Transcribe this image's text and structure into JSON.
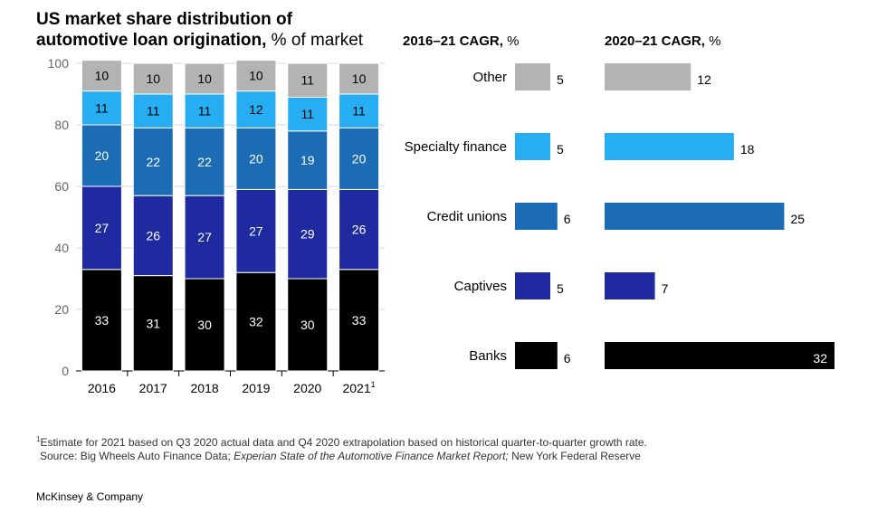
{
  "title_bold_line1": "US market share distribution of",
  "title_bold_line2": "automotive loan origination,",
  "title_unit": " % of market",
  "cagr_header_1_bold": "2016–21 CAGR,",
  "cagr_header_1_unit": " %",
  "cagr_header_2_bold": "2020–21 CAGR,",
  "cagr_header_2_unit": " %",
  "footnote_marker": "1",
  "footnote_text": "Estimate for 2021 based on Q3 2020 actual data and Q4 2020 extrapolation based on historical quarter-to-quarter growth rate.",
  "source_prefix": "Source: Big Wheels Auto Finance Data; ",
  "source_italic": "Experian State of the Automotive Finance Market  Report;",
  "source_suffix": " New York Federal Reserve",
  "brand": "McKinsey & Company",
  "colors": {
    "Banks": "#000000",
    "Captives": "#1f2aa0",
    "Credit unions": "#1c6bb5",
    "Specialty finance": "#26adf2",
    "Other": "#b3b3b3"
  },
  "chart_data": [
    {
      "type": "bar",
      "stacked": true,
      "title": "US market share distribution of automotive loan origination, % of market",
      "categories": [
        "2016",
        "2017",
        "2018",
        "2019",
        "2020",
        "2021"
      ],
      "category_superscripts": [
        "",
        "",
        "",
        "",
        "",
        "1"
      ],
      "ylim": [
        0,
        100
      ],
      "yticks": [
        0,
        20,
        40,
        60,
        80,
        100
      ],
      "series": [
        {
          "name": "Banks",
          "values": [
            33,
            31,
            30,
            32,
            30,
            33
          ]
        },
        {
          "name": "Captives",
          "values": [
            27,
            26,
            27,
            27,
            29,
            26
          ]
        },
        {
          "name": "Credit unions",
          "values": [
            20,
            22,
            22,
            20,
            19,
            20
          ]
        },
        {
          "name": "Specialty finance",
          "values": [
            11,
            11,
            11,
            12,
            11,
            11
          ]
        },
        {
          "name": "Other",
          "values": [
            10,
            10,
            10,
            10,
            11,
            10
          ]
        }
      ]
    },
    {
      "type": "bar",
      "orientation": "horizontal",
      "title": "2016–21 CAGR, %",
      "categories": [
        "Other",
        "Specialty finance",
        "Credit unions",
        "Captives",
        "Banks"
      ],
      "values": [
        5,
        5,
        6,
        5,
        6
      ]
    },
    {
      "type": "bar",
      "orientation": "horizontal",
      "title": "2020–21 CAGR, %",
      "categories": [
        "Other",
        "Specialty finance",
        "Credit unions",
        "Captives",
        "Banks"
      ],
      "values": [
        12,
        18,
        25,
        7,
        32
      ]
    }
  ]
}
